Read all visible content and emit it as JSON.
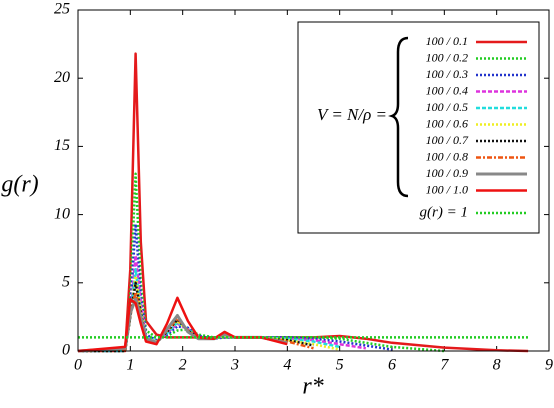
{
  "chart_data": {
    "type": "line",
    "x_label": "r*",
    "y_label": "g(r)",
    "legend_prefix": "V = N/ρ =",
    "xlim": [
      0,
      9
    ],
    "ylim": [
      0,
      25
    ],
    "xticks": [
      0,
      1,
      2,
      3,
      4,
      5,
      6,
      7,
      8,
      9
    ],
    "yticks": [
      0,
      5,
      10,
      15,
      20,
      25
    ],
    "grid": false,
    "legend": "upper right",
    "x": [
      0,
      0.9,
      1.0,
      1.1,
      1.2,
      1.3,
      1.5,
      1.7,
      1.9,
      2.1,
      2.3,
      2.6,
      2.8,
      3.0,
      3.5,
      4.0,
      4.5,
      5.0,
      5.5,
      6.0,
      7.0,
      8.0,
      8.6
    ],
    "series": [
      {
        "name": "100 / 0.1",
        "color": "#e41a1c",
        "style": "solid",
        "values": [
          0,
          0,
          6,
          21.8,
          8,
          2.2,
          1.2,
          1.0,
          1.0,
          1.0,
          1.0,
          1.0,
          1.0,
          1.0,
          1.0,
          1.0,
          1.0,
          1.1,
          0.9,
          0.6,
          0.25,
          0.05,
          0
        ]
      },
      {
        "name": "100 / 0.2",
        "color": "#22cc22",
        "style": "dotted",
        "values": [
          0,
          0,
          4,
          13,
          5,
          1.5,
          1.0,
          1.1,
          1.5,
          1.6,
          1.2,
          1.0,
          1.0,
          1.0,
          1.0,
          1.0,
          1.0,
          0.9,
          0.6,
          0.3,
          0,
          null,
          null
        ]
      },
      {
        "name": "100 / 0.3",
        "color": "#2233cc",
        "style": "dotted",
        "values": [
          0,
          0,
          3,
          9.3,
          4,
          1.2,
          0.8,
          1.2,
          1.8,
          1.7,
          1.1,
          0.9,
          1.0,
          1.0,
          1.0,
          1.0,
          0.9,
          0.7,
          0.4,
          0.1,
          null,
          null,
          null
        ]
      },
      {
        "name": "100 / 0.4",
        "color": "#dd33dd",
        "style": "dashed",
        "values": [
          0,
          0,
          2.5,
          7,
          3.5,
          1.0,
          0.7,
          1.3,
          2.0,
          1.6,
          1.0,
          0.9,
          1.1,
          1.0,
          1.0,
          0.9,
          0.8,
          0.5,
          0.2,
          null,
          null,
          null,
          null
        ]
      },
      {
        "name": "100 / 0.5",
        "color": "#22dddd",
        "style": "dashed",
        "values": [
          0,
          0,
          2.5,
          6,
          3,
          1.0,
          0.7,
          1.3,
          2.1,
          1.6,
          1.0,
          0.9,
          1.1,
          1.0,
          1.0,
          0.9,
          0.7,
          0.3,
          null,
          null,
          null,
          null,
          null
        ]
      },
      {
        "name": "100 / 0.6",
        "color": "#eeee22",
        "style": "dotted",
        "values": [
          0,
          0,
          2.5,
          5.5,
          3,
          0.9,
          0.7,
          1.4,
          2.2,
          1.5,
          1.0,
          0.9,
          1.1,
          1.0,
          1.0,
          0.8,
          0.5,
          0.1,
          null,
          null,
          null,
          null,
          null
        ]
      },
      {
        "name": "100 / 0.7",
        "color": "#111111",
        "style": "dotted",
        "values": [
          0,
          0,
          2.5,
          5,
          2.8,
          0.9,
          0.6,
          1.4,
          2.3,
          1.5,
          1.0,
          0.9,
          1.2,
          1.0,
          1.0,
          0.8,
          0.4,
          null,
          null,
          null,
          null,
          null,
          null
        ]
      },
      {
        "name": "100 / 0.8",
        "color": "#ee5511",
        "style": "dashdot",
        "values": [
          0,
          0.1,
          2.6,
          4.3,
          2.6,
          0.9,
          0.6,
          1.5,
          2.4,
          1.5,
          0.9,
          0.9,
          1.2,
          1.0,
          1.0,
          0.7,
          0.2,
          null,
          null,
          null,
          null,
          null,
          null
        ]
      },
      {
        "name": "100 / 0.9",
        "color": "#888888",
        "style": "thick",
        "values": [
          0,
          0.2,
          2.8,
          3.8,
          2.5,
          0.9,
          0.6,
          1.6,
          2.6,
          1.4,
          0.9,
          0.9,
          1.2,
          1.0,
          1.0,
          0.6,
          null,
          null,
          null,
          null,
          null,
          null,
          null
        ]
      },
      {
        "name": "100 / 1.0",
        "color": "#ee1111",
        "style": "solid",
        "values": [
          0,
          0.3,
          3.8,
          3.5,
          2.0,
          0.7,
          0.5,
          2.0,
          3.9,
          2.2,
          1.0,
          0.9,
          1.4,
          1.0,
          1.0,
          0.5,
          null,
          null,
          null,
          null,
          null,
          null,
          null
        ]
      },
      {
        "name": "g(r) = 1",
        "color": "#22cc22",
        "style": "dotted",
        "values": [
          1,
          1,
          1,
          1,
          1,
          1,
          1,
          1,
          1,
          1,
          1,
          1,
          1,
          1,
          1,
          1,
          1,
          1,
          1,
          1,
          1,
          1,
          1
        ]
      }
    ]
  }
}
